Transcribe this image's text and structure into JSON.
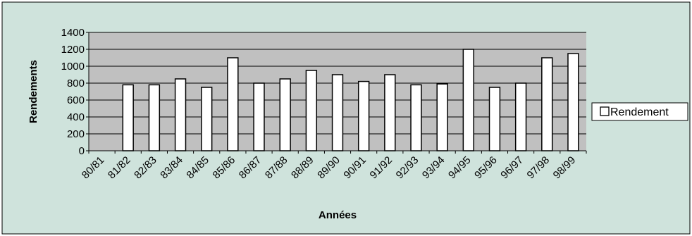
{
  "chart_data": {
    "type": "bar",
    "categories": [
      "80/81",
      "81/82",
      "82/83",
      "83/84",
      "84/85",
      "85/86",
      "86/87",
      "87/88",
      "88/89",
      "89/90",
      "90/91",
      "91/92",
      "92/93",
      "93/94",
      "94/95",
      "95/96",
      "96/97",
      "97/98",
      "98/99"
    ],
    "series": [
      {
        "name": "Rendement",
        "values": [
          null,
          780,
          780,
          850,
          750,
          1100,
          800,
          850,
          950,
          900,
          820,
          900,
          780,
          790,
          1200,
          750,
          800,
          1100,
          1150
        ]
      }
    ],
    "xlabel": "Années",
    "ylabel": "Rendements",
    "ylim": [
      0,
      1400
    ],
    "yticks": [
      0,
      200,
      400,
      600,
      800,
      1000,
      1200,
      1400
    ],
    "grid": true,
    "legend_position": "right",
    "colors": {
      "outer_background": "#cfe3dc",
      "plot_background": "#c0c0c0",
      "bar_fill": "#ffffff",
      "bar_stroke": "#000000",
      "gridline": "#000000"
    }
  }
}
